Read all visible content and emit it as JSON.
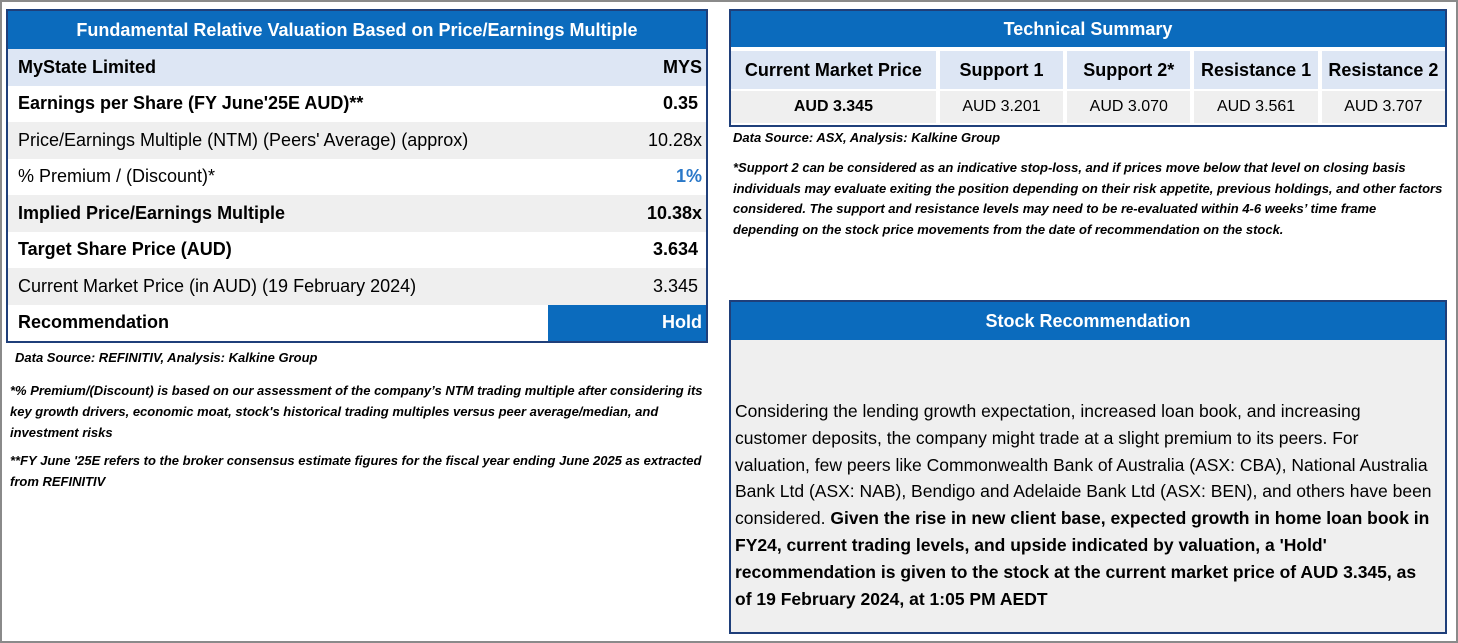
{
  "valuation": {
    "title": "Fundamental Relative Valuation Based on Price/Earnings Multiple",
    "rows": [
      {
        "label": "MyState Limited",
        "value": "MYS"
      },
      {
        "label": "Earnings per Share (FY June'25E AUD)**",
        "value": "0.35"
      },
      {
        "label": "Price/Earnings Multiple (NTM)  (Peers' Average) (approx)",
        "value": "10.28x"
      },
      {
        "label": "% Premium / (Discount)*",
        "value": "1%"
      },
      {
        "label": "Implied Price/Earnings Multiple",
        "value": "10.38x"
      },
      {
        "label": "Target Share Price (AUD)",
        "value": "3.634"
      },
      {
        "label": "Current Market Price (in AUD) (19 February 2024)",
        "value": "3.345"
      },
      {
        "label": "Recommendation",
        "value": "Hold"
      }
    ],
    "source": "Data Source: REFINITIV, Analysis: Kalkine Group",
    "note1": "*% Premium/(Discount) is based on our assessment of the company’s NTM trading multiple after considering its key growth drivers, economic moat, stock's historical trading multiples versus peer average/median, and investment risks",
    "note2": " **FY June '25E refers to the broker consensus estimate figures for the fiscal year ending June 2025  as extracted from REFINITIV"
  },
  "technical": {
    "title": "Technical Summary",
    "columns": [
      {
        "header": "Current Market Price",
        "value": "AUD 3.345"
      },
      {
        "header": "Support 1",
        "value": "AUD 3.201"
      },
      {
        "header": "Support 2*",
        "value": "AUD 3.070"
      },
      {
        "header": "Resistance 1",
        "value": "AUD 3.561"
      },
      {
        "header": "Resistance 2",
        "value": "AUD 3.707"
      }
    ],
    "source": "Data Source: ASX, Analysis: Kalkine Group",
    "note": "*Support 2 can be considered as an indicative stop-loss, and if prices move below that level on closing basis individuals may evaluate exiting the position depending on their risk appetite, previous holdings, and other factors considered. The support and resistance levels may need to be re-evaluated within 4-6 weeks’ time frame depending on the stock price movements from the date of recommendation on the stock."
  },
  "recommendation": {
    "title": "Stock Recommendation",
    "text_regular": "Considering the lending growth expectation, increased loan book, and increasing customer deposits, the company might trade at a slight premium to its peers. For valuation, few peers like Commonwealth Bank of Australia (ASX: CBA), National Australia Bank Ltd (ASX: NAB), Bendigo and Adelaide Bank Ltd (ASX: BEN), and others have been considered. ",
    "text_bold": "Given the rise in new client base, expected growth in home loan book in FY24, current trading levels, and upside indicated by valuation, a 'Hold' recommendation is given to the stock at the current market price of AUD 3.345, as of 19 February 2024, at 1:05 PM AEDT"
  }
}
